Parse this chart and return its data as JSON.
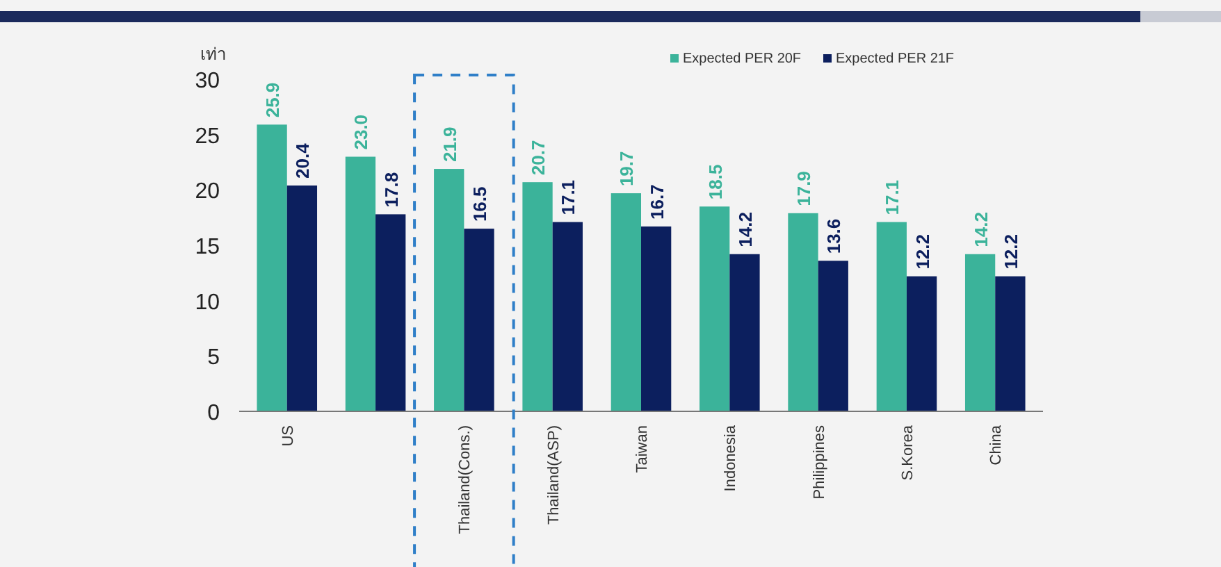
{
  "chart_data": {
    "type": "bar",
    "ylabel": "เท่า",
    "categories": [
      "US",
      null,
      "Thailand(Cons.)",
      "Thailand(ASP)",
      "Taiwan",
      "Indonesia",
      "Philippines",
      "S.Korea",
      "China"
    ],
    "series": [
      {
        "name": "Expected PER 20F",
        "color": "#3bb39a",
        "values": [
          25.9,
          23.0,
          21.9,
          20.7,
          19.7,
          18.5,
          17.9,
          17.1,
          14.2
        ],
        "value_labels": [
          "25.9",
          "23.0",
          "21.9",
          "20.7",
          "19.7",
          "18.5",
          "17.9",
          "17.1",
          "14.2"
        ]
      },
      {
        "name": "Expected PER 21F",
        "color": "#0c1f5e",
        "values": [
          20.4,
          17.8,
          16.5,
          17.1,
          16.7,
          14.2,
          13.6,
          12.2,
          12.2
        ],
        "value_labels": [
          "20.4",
          "17.8",
          "16.5",
          "17.1",
          "16.7",
          "14.2",
          "13.6",
          "12.2",
          "12.2"
        ]
      }
    ],
    "ylim": [
      0,
      30
    ],
    "yticks": [
      0,
      5,
      10,
      15,
      20,
      25,
      30
    ],
    "grid": false,
    "legend": "top right"
  }
}
